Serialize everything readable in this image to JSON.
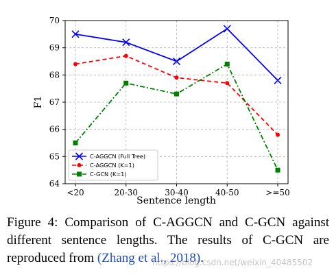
{
  "chart_data": {
    "type": "line",
    "xlabel": "Sentence length",
    "ylabel": "F1",
    "categories": [
      "<20",
      "20-30",
      "30-40",
      "40-50",
      ">=50"
    ],
    "ylim": [
      64,
      70
    ],
    "yticks": [
      "64",
      "65",
      "66",
      "67",
      "68",
      "69",
      "70"
    ],
    "grid": true,
    "legend_position": "lower-left",
    "series": [
      {
        "name": "C-AGGCN (Full Tree)",
        "values": [
          69.5,
          69.2,
          68.5,
          69.7,
          67.8
        ],
        "color": "#0000ff",
        "style": "solid",
        "marker": "x"
      },
      {
        "name": "C-AGGCN (K=1)",
        "values": [
          68.4,
          68.7,
          67.9,
          67.7,
          65.8
        ],
        "color": "#ff0000",
        "style": "dashed",
        "marker": "circle"
      },
      {
        "name": "C-GCN (K=1)",
        "values": [
          65.5,
          67.7,
          67.3,
          68.4,
          64.5
        ],
        "color": "#008000",
        "style": "dashdot",
        "marker": "square"
      }
    ]
  },
  "caption": {
    "text": "Figure 4:  Comparison of C-AGGCN and C-GCN against different sentence lengths.  The results of C-GCN are reproduced from ",
    "citation": "(Zhang et al., 2018)",
    "end": "."
  },
  "watermark": "https://blog.csdn.net/weixin_40485502"
}
